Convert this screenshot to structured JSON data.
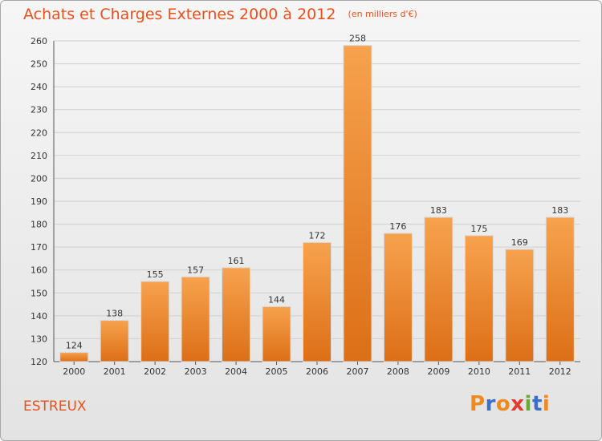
{
  "header": {
    "title": "Achats et Charges Externes 2000 à 2012",
    "unit": "(en milliers d'€)"
  },
  "footer": {
    "commune": "ESTREUX",
    "logo_text": "Proxiti"
  },
  "colors": {
    "title": "#e8511f",
    "bar_top": "#f7a24e",
    "bar_bottom": "#dc6f17",
    "grid": "#cfcfcf",
    "logo": [
      "#f08a1d",
      "#3b6fc8",
      "#f08a1d",
      "#e23a2d",
      "#6aa83a",
      "#3b6fc8",
      "#f08a1d"
    ]
  },
  "chart_data": {
    "type": "bar",
    "title": "Achats et Charges Externes 2000 à 2012",
    "subtitle": "(en milliers d'€)",
    "categories": [
      "2000",
      "2001",
      "2002",
      "2003",
      "2004",
      "2005",
      "2006",
      "2007",
      "2008",
      "2009",
      "2010",
      "2011",
      "2012"
    ],
    "values": [
      124,
      138,
      155,
      157,
      161,
      144,
      172,
      258,
      176,
      183,
      175,
      169,
      183
    ],
    "ylim": [
      120,
      260
    ],
    "yticks": [
      120,
      130,
      140,
      150,
      160,
      170,
      180,
      190,
      200,
      210,
      220,
      230,
      240,
      250,
      260
    ],
    "grid": true,
    "data_labels": true
  }
}
